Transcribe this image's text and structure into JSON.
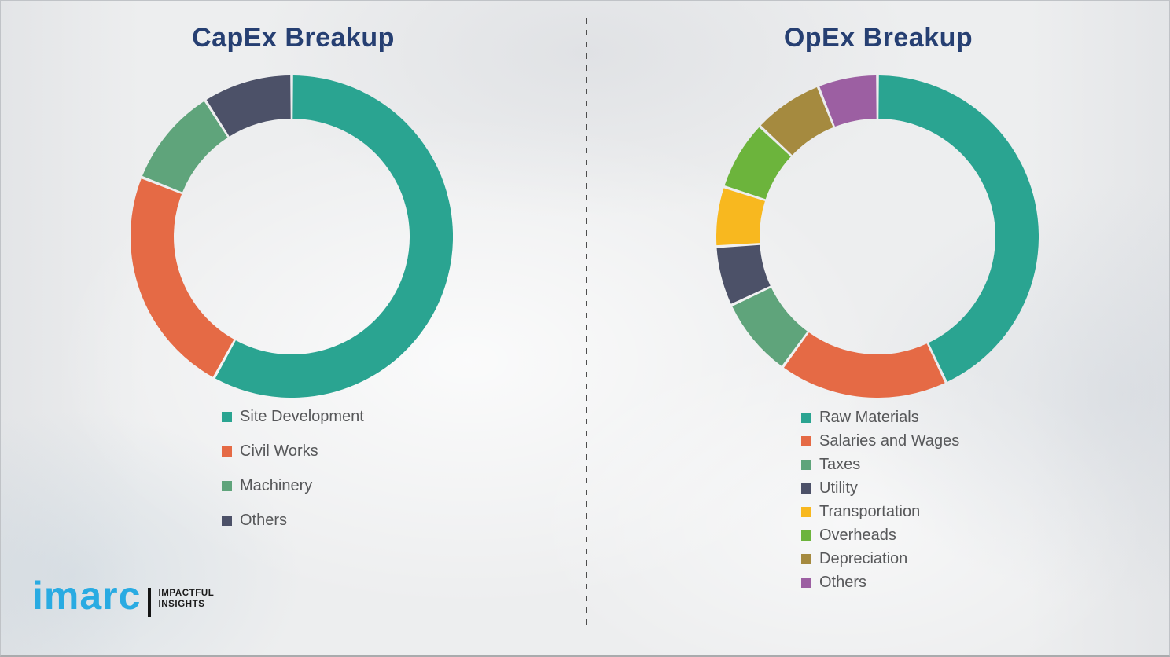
{
  "style": {
    "background_color": "#EDEEEF",
    "title_color": "#263F72",
    "legend_text_color": "#57585A",
    "divider_color": "#4d4d4d",
    "brand_color": "#29ABE2"
  },
  "chart_data": [
    {
      "type": "pie",
      "variant": "donut",
      "title": "CapEx Breakup",
      "categories": [
        "Site Development",
        "Civil Works",
        "Machinery",
        "Others"
      ],
      "values": [
        58,
        23,
        10,
        9
      ],
      "colors": [
        "#2AA491",
        "#E56A45",
        "#5FA47B",
        "#4C5168"
      ],
      "start_angle_deg": 0,
      "direction": "clockwise",
      "legend_position": "below-left",
      "data_labels": false
    },
    {
      "type": "pie",
      "variant": "donut",
      "title": "OpEx Breakup",
      "categories": [
        "Raw Materials",
        "Salaries and Wages",
        "Taxes",
        "Utility",
        "Transportation",
        "Overheads",
        "Depreciation",
        "Others"
      ],
      "values": [
        43,
        17,
        8,
        6,
        6,
        7,
        7,
        6
      ],
      "colors": [
        "#2AA491",
        "#E56A45",
        "#5FA47B",
        "#4C5168",
        "#F8B81F",
        "#6CB43C",
        "#A58A3F",
        "#9C5FA2"
      ],
      "start_angle_deg": 0,
      "direction": "clockwise",
      "legend_position": "below-left",
      "data_labels": false
    }
  ],
  "logo": {
    "brand": "imarc",
    "tagline_line1": "IMPACTFUL",
    "tagline_line2": "INSIGHTS"
  }
}
